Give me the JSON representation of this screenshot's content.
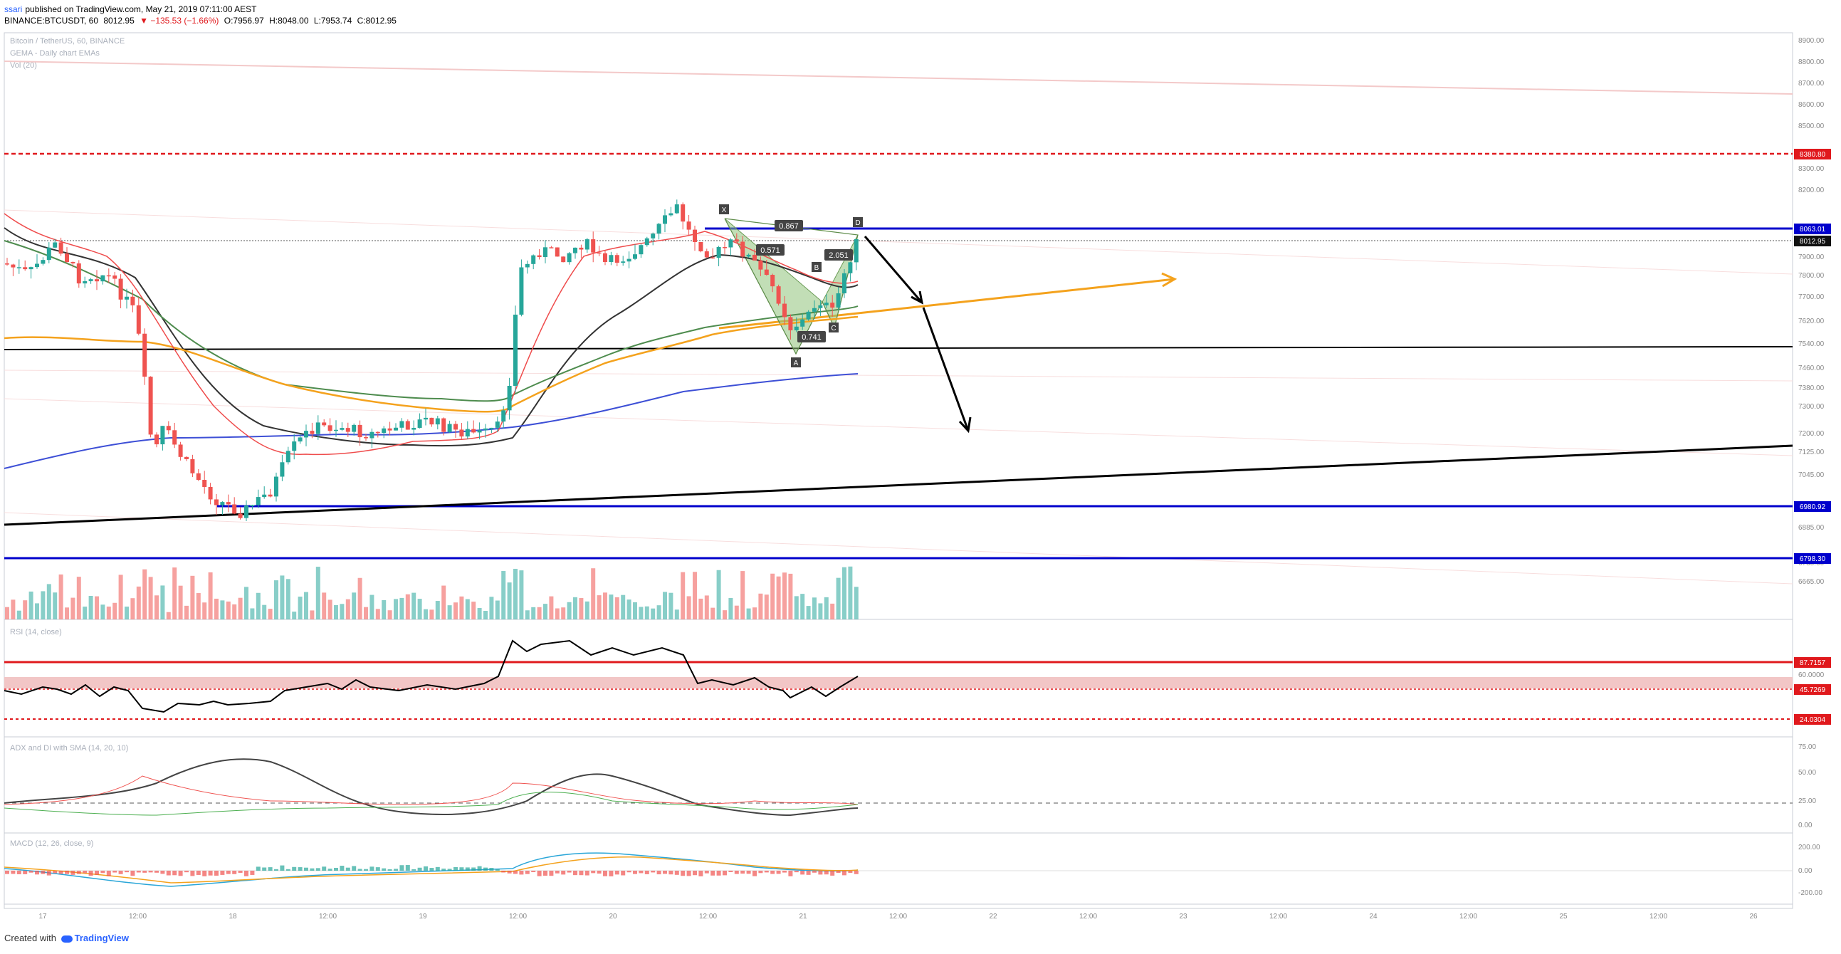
{
  "header": {
    "author": "ssari",
    "published": "published on TradingView.com, May 21, 2019 07:11:00 AEST",
    "symbol": "BINANCE:BTCUSDT, 60",
    "last": "8012.95",
    "change": "▼ −135.53 (−1.66%)",
    "open": "O:7956.97",
    "high": "H:8048.00",
    "low": "L:7953.74",
    "close": "C:8012.95"
  },
  "legend": {
    "title": "Bitcoin / TetherUS, 60, BINANCE",
    "indicator": "GEMA - Daily chart EMAs",
    "volume": "Vol (20)"
  },
  "price_labels": {
    "r1": "8380.80",
    "r2": "8063.01",
    "last": "8012.95",
    "s1": "6980.92",
    "s2": "6798.30"
  },
  "rsi": {
    "label": "RSI (14, close)",
    "upper": "87.7157",
    "mid": "45.7269",
    "lower": "24.0304",
    "tick": "60.0000"
  },
  "adx": {
    "label": "ADX and DI with SMA (14, 20, 10)",
    "ticks": [
      "75.00",
      "50.00",
      "25.00",
      "0.00"
    ]
  },
  "macd": {
    "label": "MACD (12, 26, close, 9)",
    "ticks": [
      "200.00",
      "0.00",
      "-200.00"
    ]
  },
  "harmonic": {
    "X": "X",
    "A": "A",
    "B": "B",
    "C": "C",
    "D": "D",
    "r1": "0.867",
    "r2": "0.571",
    "r3": "0.741",
    "r4": "2.051"
  },
  "price_axis": [
    "8900.00",
    "8800.00",
    "8700.00",
    "8600.00",
    "8500.00",
    "8300.00",
    "8200.00",
    "7900.00",
    "7800.00",
    "7700.00",
    "7620.00",
    "7540.00",
    "7460.00",
    "7380.00",
    "7300.00",
    "7200.00",
    "7125.00",
    "7045.00",
    "6885.00",
    "6735.00",
    "6665.00"
  ],
  "time_axis": [
    "17",
    "12:00",
    "18",
    "12:00",
    "19",
    "12:00",
    "20",
    "12:00",
    "21",
    "12:00",
    "22",
    "12:00",
    "23",
    "12:00",
    "24",
    "12:00",
    "25",
    "12:00",
    "26"
  ],
  "footer": {
    "created": "Created with",
    "brand": "TradingView"
  },
  "colors": {
    "up": "#26a69a",
    "down": "#ef5350",
    "blue": "#0000cc",
    "red": "#e0191d",
    "orange": "#f4a21d"
  }
}
